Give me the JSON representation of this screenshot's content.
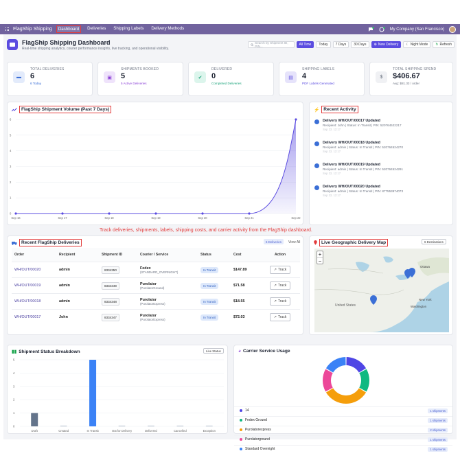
{
  "topbar": {
    "brand": "FlagShip Shipping",
    "nav": [
      "Dashboard",
      "Deliveries",
      "Shipping Labels",
      "Delivery Methods"
    ],
    "company": "My Company (San Francisco)"
  },
  "header": {
    "title": "FlagShip Shipping Dashboard",
    "subtitle": "Real-time shipping analytics, courier performance insights, live tracking, and operational visibility.",
    "search_placeholder": "Search by Shipment ID, PIN...",
    "filters": [
      "All Time",
      "Today",
      "7 Days",
      "30 Days"
    ],
    "new_delivery": "New Delivery",
    "night_mode": "Night Mode",
    "refresh": "Refresh"
  },
  "stats": [
    {
      "label": "TOTAL DELIVERIES",
      "value": "6",
      "sub": "6 Today",
      "color": "#3b6fd6",
      "bg": "#e3ebfb"
    },
    {
      "label": "SHIPMENTS BOOKED",
      "value": "5",
      "sub": "5 Active Deliveries",
      "color": "#8b3fd6",
      "bg": "#efe3fb"
    },
    {
      "label": "DELIVERED",
      "value": "0",
      "sub": "Completed Deliveries",
      "color": "#1aa37a",
      "bg": "#dcf5ec"
    },
    {
      "label": "SHIPPING LABELS",
      "value": "4",
      "sub": "PDF Labels Generated",
      "color": "#5b4ce0",
      "bg": "#e6e3fb"
    },
    {
      "label": "TOTAL SHIPPING SPEND",
      "value": "$406.67",
      "sub": "Avg: $81.33 / order",
      "color": "#6b7280",
      "bg": "#f0f1f4"
    }
  ],
  "volume_chart": {
    "title": "FlagShip Shipment Volume (Past 7 Days)",
    "chart_data": {
      "type": "area",
      "categories": [
        "Sep 16",
        "Sep 17",
        "Sep 18",
        "Sep 19",
        "Sep 20",
        "Sep 21",
        "Sep 22"
      ],
      "values": [
        0,
        0,
        0,
        0,
        0,
        0,
        6
      ],
      "ylim": [
        0,
        6
      ],
      "yticks": [
        "0",
        "1",
        "2",
        "3",
        "4",
        "5",
        "6"
      ],
      "color": "#5b4ce0"
    }
  },
  "activity": {
    "title": "Recent Activity",
    "items": [
      {
        "head": "Delivery WH/OUT/00017 Updated",
        "detail": "Recipient: John | Status: In Transit | PIN: 520764522217",
        "time": "Sep 22, 12:17"
      },
      {
        "head": "Delivery WH/OUT/00018 Updated",
        "detail": "Recipient: admin | Status: In Transit | PIN: 520764524270",
        "time": "Sep 22, 12:17"
      },
      {
        "head": "Delivery WH/OUT/00019 Updated",
        "detail": "Recipient: admin | Status: In Transit | PIN: 520764524291",
        "time": "Sep 22, 12:17"
      },
      {
        "head": "Delivery WH/OUT/00020 Updated",
        "detail": "Recipient: admin | Status: In Transit | PIN: 877553974073",
        "time": "Sep 22, 12:17"
      }
    ]
  },
  "caption": "Track deliveries, shipments, labels, shipping costs, and carrier activity from the FlagShip dashboard.",
  "deliveries": {
    "title": "Recent FlagShip Deliveries",
    "count_badge": "6 Deliveries",
    "view_all": "View All",
    "columns": [
      "Order",
      "Recipient",
      "Shipment ID",
      "Courier / Service",
      "Status",
      "Cost",
      "Action"
    ],
    "rows": [
      {
        "order": "WH/OUT/00020",
        "recipient": "admin",
        "sid": "8334350",
        "courier": "Fedex",
        "service": "(STANDARD_OVERNIGHT)",
        "status": "In Transit",
        "cost": "$147.89",
        "action": "Track"
      },
      {
        "order": "WH/OUT/00019",
        "recipient": "admin",
        "sid": "8334349",
        "courier": "Purolator",
        "service": "(PurolatorGround)",
        "status": "In Transit",
        "cost": "$71.58",
        "action": "Track"
      },
      {
        "order": "WH/OUT/00018",
        "recipient": "admin",
        "sid": "8334348",
        "courier": "Purolator",
        "service": "(PurolatorExpress)",
        "status": "In Transit",
        "cost": "$18.55",
        "action": "Track"
      },
      {
        "order": "WH/OUT/00017",
        "recipient": "John",
        "sid": "8334347",
        "courier": "Purolator",
        "service": "(PurolatorExpress)",
        "status": "In Transit",
        "cost": "$72.03",
        "action": "Track"
      }
    ]
  },
  "map": {
    "title": "Live Geographic Delivery Map",
    "destinations": "6 Destinations",
    "zoom_in": "+",
    "zoom_out": "−",
    "labels": [
      "Ottawa",
      "New York",
      "Washington",
      "United States"
    ]
  },
  "status_chart": {
    "title": "Shipment Status Breakdown",
    "badge": "Live Status",
    "chart_data": {
      "type": "bar",
      "categories": [
        "Draft",
        "Created",
        "In Transit",
        "Out for Delivery",
        "Delivered",
        "Cancelled",
        "Exception"
      ],
      "values": [
        1,
        0,
        5,
        0,
        0,
        0,
        0
      ],
      "ylim": [
        0,
        5
      ],
      "yticks": [
        "0",
        "1",
        "2",
        "3",
        "4",
        "5"
      ],
      "colors": [
        "#64748b",
        "#94a3b8",
        "#3b82f6",
        "#94a3b8",
        "#94a3b8",
        "#94a3b8",
        "#94a3b8"
      ]
    }
  },
  "carrier_chart": {
    "title": "Carrier Service Usage",
    "chart_data": {
      "type": "pie",
      "labels": [
        "14",
        "Fedex Ground",
        "Purolatorexpress",
        "Purolatorground",
        "Standard Overnight"
      ],
      "values": [
        1,
        1,
        2,
        1,
        1
      ],
      "counts": [
        "1 shipments",
        "1 shipments",
        "2 shipments",
        "1 shipments",
        "1 shipments"
      ],
      "colors": [
        "#4f46e5",
        "#10b981",
        "#f59e0b",
        "#ec4899",
        "#3b82f6"
      ]
    }
  }
}
